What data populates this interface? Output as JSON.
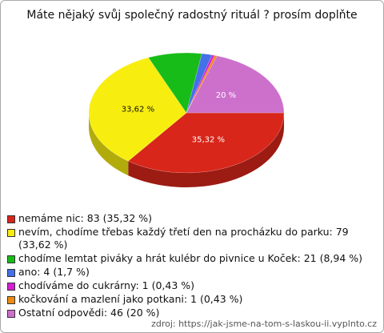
{
  "chart_data": {
    "type": "pie",
    "title": "Máte nějaký svůj společný radostný rituál ? prosím doplňte",
    "categories": [
      "nemáme nic: 83 (35,32 %)",
      "nevím, chodíme třebas každý třetí den na procházku do parku: 79 (33,62 %)",
      "chodíme lemtat piváky a hrát kulébr do pivnice u Koček: 21 (8,94 %)",
      "ano: 4 (1,7 %)",
      "chodíváme do cukrárny: 1 (0,43 %)",
      "kočkování a mazlení jako potkani: 1 (0,43 %)",
      "Ostatní odpovědi: 46 (20 %)"
    ],
    "values": [
      35.32,
      33.62,
      8.94,
      1.7,
      0.43,
      0.43,
      20
    ],
    "value_labels": [
      "35,32 %",
      "33,62 %",
      null,
      null,
      null,
      null,
      "20 %"
    ],
    "colors": [
      "#d8261a",
      "#f7ee10",
      "#18bc18",
      "#4470e8",
      "#d41ed4",
      "#ef8a12",
      "#cc70cc"
    ],
    "source": "zdroj: https://jak-jsme-na-tom-s-laskou-ii.vyplnto.cz"
  }
}
